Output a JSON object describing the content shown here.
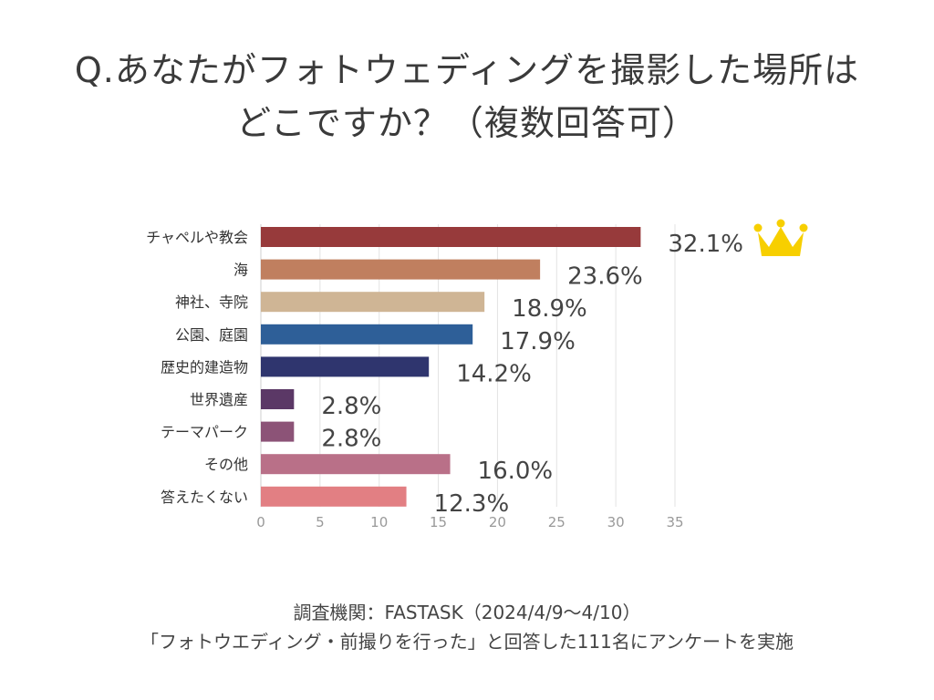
{
  "title": {
    "line1": "Q.あなたがフォトウェディングを撮影した場所は",
    "line2": "どこですか？（複数回答可）"
  },
  "chart_data": {
    "type": "bar",
    "orientation": "horizontal",
    "categories": [
      "チャペルや教会",
      "海",
      "神社、寺院",
      "公園、庭園",
      "歴史的建造物",
      "世界遺産",
      "テーマパーク",
      "その他",
      "答えたくない"
    ],
    "values": [
      32.1,
      23.6,
      18.9,
      17.9,
      14.2,
      2.8,
      2.8,
      16.0,
      12.3
    ],
    "value_labels": [
      "32.1%",
      "23.6%",
      "18.9%",
      "17.9%",
      "14.2%",
      "2.8%",
      "2.8%",
      "16.0%",
      "12.3%"
    ],
    "colors": [
      "#973a3b",
      "#c07f5f",
      "#cfb595",
      "#2e5f98",
      "#2f356e",
      "#5b3866",
      "#8c5377",
      "#b97088",
      "#e27f83"
    ],
    "xlim": [
      0,
      35
    ],
    "xticks": [
      0,
      5,
      10,
      15,
      20,
      25,
      30,
      35
    ],
    "xtick_labels": [
      "0",
      "5",
      "10",
      "15",
      "20",
      "25",
      "30",
      "35"
    ],
    "grid": true,
    "highlight_icon": "crown-icon",
    "highlight_color": "#f7cf00",
    "label_color": "#444444",
    "tick_color": "#999999"
  },
  "footer": {
    "line1": "調査機関：FASTASK（2024/4/9〜4/10）",
    "line2": "「フォトウエディング・前撮りを行った」と回答した111名にアンケートを実施"
  }
}
